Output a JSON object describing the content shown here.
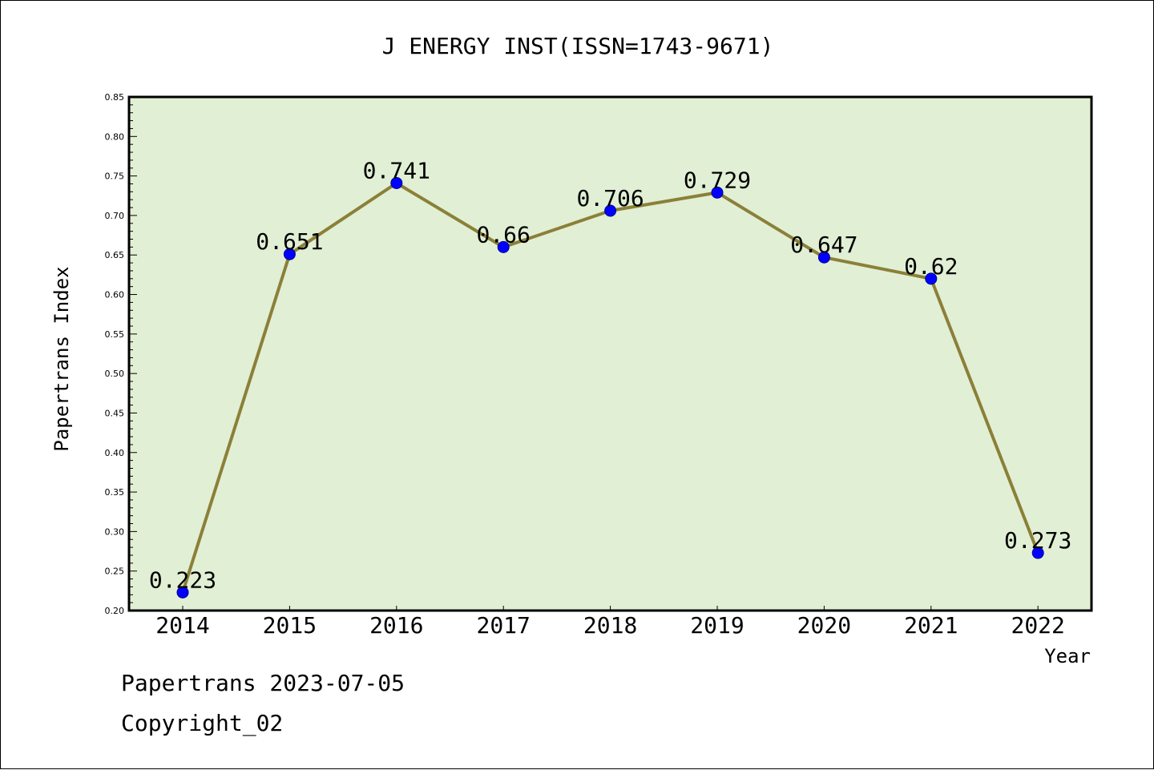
{
  "chart_data": {
    "type": "line",
    "title": "J ENERGY INST(ISSN=1743-9671)",
    "xlabel": "Year",
    "ylabel": "Papertrans Index",
    "categories": [
      "2014",
      "2015",
      "2016",
      "2017",
      "2018",
      "2019",
      "2020",
      "2021",
      "2022"
    ],
    "values": [
      0.223,
      0.651,
      0.741,
      0.66,
      0.706,
      0.729,
      0.647,
      0.62,
      0.273
    ],
    "data_labels": [
      "0.223",
      "0.651",
      "0.741",
      "0.66",
      "0.706",
      "0.729",
      "0.647",
      "0.62",
      "0.273"
    ],
    "ylim": [
      0.2,
      0.85
    ],
    "y_ticks": [
      "0.20",
      "0.25",
      "0.30",
      "0.35",
      "0.40",
      "0.45",
      "0.50",
      "0.55",
      "0.60",
      "0.65",
      "0.70",
      "0.75",
      "0.80",
      "0.85"
    ],
    "grid": false,
    "colors": {
      "plot_background": "#e1efd5",
      "line": "#8b8038",
      "marker": "#0000ff"
    }
  },
  "footer": {
    "line1": "Papertrans 2023-07-05",
    "line2": "Copyright_02"
  }
}
